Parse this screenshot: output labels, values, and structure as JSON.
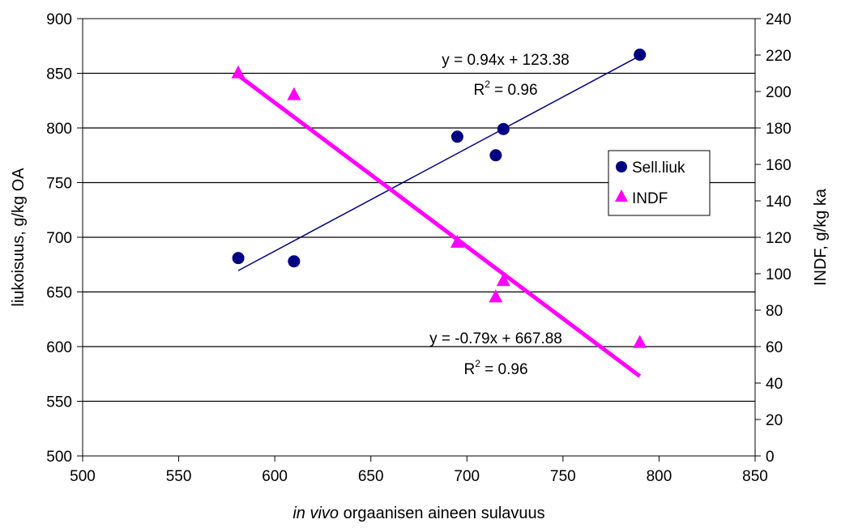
{
  "chart_data": {
    "type": "scatter",
    "xlabel_italic": "in vivo",
    "xlabel_rest": " orgaanisen aineen sulavuus",
    "ylabel_left": "liukoisuus, g/kg OA",
    "ylabel_right": "INDF, g/kg ka",
    "xlim": [
      500,
      850
    ],
    "ylim_left": [
      500,
      900
    ],
    "ylim_right": [
      0,
      240
    ],
    "x_ticks": [
      "500",
      "550",
      "600",
      "650",
      "700",
      "750",
      "800",
      "850"
    ],
    "y_ticks_left": [
      "500",
      "550",
      "600",
      "650",
      "700",
      "750",
      "800",
      "850",
      "900"
    ],
    "y_ticks_right": [
      "0",
      "20",
      "40",
      "60",
      "80",
      "100",
      "120",
      "140",
      "160",
      "180",
      "200",
      "220",
      "240"
    ],
    "grid": "horizontal",
    "legend_position": "right",
    "series": [
      {
        "name": "Sell.liuk",
        "axis": "left",
        "marker": "circle",
        "color": "#000080",
        "points": [
          [
            581,
            681
          ],
          [
            610,
            678
          ],
          [
            695,
            792
          ],
          [
            715,
            775
          ],
          [
            719,
            799
          ],
          [
            790,
            867
          ]
        ],
        "trendline": {
          "equation": "y = 0.94x + 123.38",
          "r2_prefix": "R",
          "r2_sup": "2",
          "r2_value": " = 0.96",
          "from_x": 581,
          "to_x": 790,
          "color": "#000080"
        }
      },
      {
        "name": "INDF",
        "axis": "right",
        "marker": "triangle",
        "color": "#FF00FF",
        "points": [
          [
            581,
            210
          ],
          [
            610,
            198
          ],
          [
            695,
            117
          ],
          [
            715,
            87
          ],
          [
            719,
            96
          ],
          [
            790,
            62
          ]
        ],
        "trendline": {
          "equation": "y = -0.79x + 667.88",
          "r2_prefix": "R",
          "r2_sup": "2",
          "r2_value": " = 0.96",
          "from_x": 581,
          "to_x": 790,
          "color": "#FF00FF"
        }
      }
    ]
  }
}
